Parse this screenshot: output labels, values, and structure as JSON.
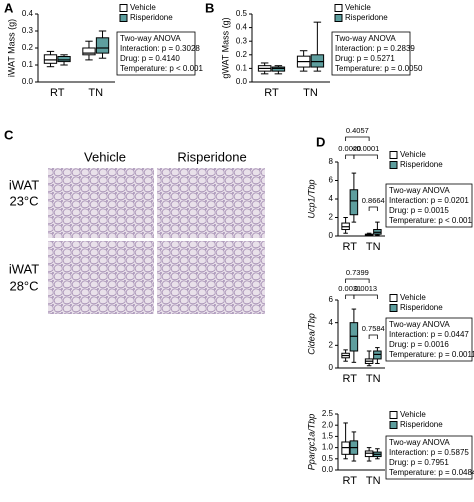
{
  "panel_labels": [
    "A",
    "B",
    "C",
    "D"
  ],
  "histology": {
    "columns": [
      "Vehicle",
      "Risperidone"
    ],
    "rows": [
      [
        "iWAT",
        "23°C"
      ],
      [
        "iWAT",
        "28°C"
      ]
    ]
  },
  "chart_data": [
    {
      "type": "box",
      "ylabel": "iWAT Mass (g)",
      "categories": [
        "RT",
        "TN"
      ],
      "ylim": [
        0,
        0.4
      ],
      "yticks": [
        {
          "value": 0,
          "label": "0.0"
        },
        {
          "value": 0.1,
          "label": "0.1"
        },
        {
          "value": 0.2,
          "label": "0.2"
        },
        {
          "value": 0.3,
          "label": "0.3"
        },
        {
          "value": 0.4,
          "label": "0.4"
        }
      ],
      "series": [
        {
          "name": "Vehicle",
          "color": "#ffffff",
          "values": [
            [
              0.09,
              0.11,
              0.13,
              0.16,
              0.18
            ],
            [
              0.13,
              0.16,
              0.17,
              0.2,
              0.24
            ]
          ]
        },
        {
          "name": "Risperidone",
          "color": "#5e9e9e",
          "values": [
            [
              0.1,
              0.12,
              0.13,
              0.15,
              0.16
            ],
            [
              0.14,
              0.17,
              0.2,
              0.26,
              0.3
            ]
          ]
        }
      ],
      "stats": [
        "Two-way ANOVA",
        "Interaction: p = 0.3028",
        "Drug: p = 0.4140",
        "Temperature: p < 0.001"
      ]
    },
    {
      "type": "box",
      "ylabel": "gWAT Mass (g)",
      "categories": [
        "RT",
        "TN"
      ],
      "ylim": [
        0,
        0.5
      ],
      "yticks": [
        {
          "value": 0,
          "label": "0.0"
        },
        {
          "value": 0.1,
          "label": "0.1"
        },
        {
          "value": 0.2,
          "label": "0.2"
        },
        {
          "value": 0.3,
          "label": "0.3"
        },
        {
          "value": 0.4,
          "label": "0.4"
        },
        {
          "value": 0.5,
          "label": "0.5"
        }
      ],
      "series": [
        {
          "name": "Vehicle",
          "color": "#ffffff",
          "values": [
            [
              0.06,
              0.08,
              0.1,
              0.12,
              0.14
            ],
            [
              0.08,
              0.11,
              0.15,
              0.19,
              0.23
            ]
          ]
        },
        {
          "name": "Risperidone",
          "color": "#5e9e9e",
          "values": [
            [
              0.06,
              0.08,
              0.1,
              0.11,
              0.12
            ],
            [
              0.08,
              0.11,
              0.15,
              0.2,
              0.44
            ]
          ]
        }
      ],
      "stats": [
        "Two-way ANOVA",
        "Interaction: p = 0.2839",
        "Drug: p = 0.5271",
        "Temperature: p = 0.0050"
      ]
    },
    {
      "type": "box",
      "ylabel": "Ucp1/Tbp",
      "categories": [
        "RT",
        "TN"
      ],
      "ylim": [
        0,
        8
      ],
      "yticks": [
        0,
        2,
        4,
        6,
        8
      ],
      "series": [
        {
          "name": "Vehicle",
          "color": "#ffffff",
          "values": [
            [
              0.3,
              0.7,
              1.0,
              1.4,
              2.0
            ],
            [
              0,
              0.05,
              0.1,
              0.2,
              0.3
            ]
          ]
        },
        {
          "name": "Risperidone",
          "color": "#5e9e9e",
          "values": [
            [
              1.5,
              2.3,
              3.8,
              5,
              6.8
            ],
            [
              0.1,
              0.2,
              0.4,
              0.7,
              1.5
            ]
          ]
        }
      ],
      "comparisons": [
        "0.4057",
        "0.0020",
        "<0.0001",
        "0.8664"
      ],
      "stats": [
        "Two-way ANOVA",
        "Interaction: p = 0.0201",
        "Drug: p = 0.0015",
        "Temperature: p < 0.001"
      ]
    },
    {
      "type": "box",
      "ylabel": "Cidea/Tbp",
      "categories": [
        "RT",
        "TN"
      ],
      "ylim": [
        0,
        6
      ],
      "yticks": [
        0,
        2,
        4,
        6
      ],
      "series": [
        {
          "name": "Vehicle",
          "color": "#ffffff",
          "values": [
            [
              0.6,
              0.9,
              1.1,
              1.3,
              1.6
            ],
            [
              0.2,
              0.4,
              0.6,
              0.8,
              1.5
            ]
          ]
        },
        {
          "name": "Risperidone",
          "color": "#5e9e9e",
          "values": [
            [
              0.5,
              1.5,
              2.8,
              4.0,
              5.2
            ],
            [
              0.4,
              0.8,
              1.2,
              1.5,
              1.8
            ]
          ]
        }
      ],
      "comparisons": [
        "0.7399",
        "0.0031",
        "0.0013",
        "0.7584"
      ],
      "stats": [
        "Two-way ANOVA",
        "Interaction: p = 0.0447",
        "Drug: p = 0.0016",
        "Temperature: p = 0.0011"
      ]
    },
    {
      "type": "box",
      "ylabel": "Ppargc1a/Tbp",
      "categories": [
        "RT",
        "TN"
      ],
      "ylim": [
        0,
        2.5
      ],
      "yticks": [
        {
          "value": 0,
          "label": "0.0"
        },
        {
          "value": 0.5,
          "label": "0.5"
        },
        {
          "value": 1,
          "label": "1.0"
        },
        {
          "value": 1.5,
          "label": "1.5"
        },
        {
          "value": 2,
          "label": "2.0"
        },
        {
          "value": 2.5,
          "label": "2.5"
        }
      ],
      "series": [
        {
          "name": "Vehicle",
          "color": "#ffffff",
          "values": [
            [
              0.5,
              0.7,
              1.0,
              1.25,
              2.1
            ],
            [
              0.4,
              0.6,
              0.75,
              0.85,
              1.0
            ]
          ]
        },
        {
          "name": "Risperidone",
          "color": "#5e9e9e",
          "values": [
            [
              0.4,
              0.7,
              1.0,
              1.3,
              1.7
            ],
            [
              0.5,
              0.6,
              0.7,
              0.8,
              0.95
            ]
          ]
        }
      ],
      "stats": [
        "Two-way ANOVA",
        "Interaction: p = 0.5875",
        "Drug: p = 0.7951",
        "Temperature: p = 0.0484"
      ]
    }
  ]
}
